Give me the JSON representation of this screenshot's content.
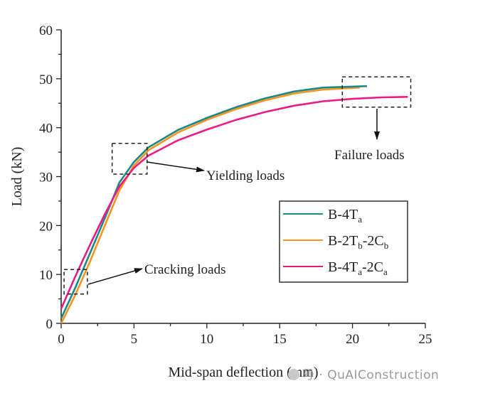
{
  "chart_data": {
    "type": "line",
    "title": "",
    "xlabel": "Mid-span deflection (mm)",
    "ylabel": "Load (kN)",
    "xlim": [
      0,
      25
    ],
    "ylim": [
      0,
      60
    ],
    "xticks": [
      "0",
      "5",
      "10",
      "15",
      "20",
      "25"
    ],
    "yticks": [
      "0",
      "10",
      "20",
      "30",
      "40",
      "50",
      "60"
    ],
    "grid": false,
    "legend_position": "center-right",
    "series": [
      {
        "name": "B-4Ta",
        "label_main": "B-4T",
        "label_sub": "a",
        "label_rest": "",
        "color": "#1a8a87",
        "x": [
          0,
          1,
          2,
          3,
          4,
          5,
          6,
          8,
          10,
          12,
          14,
          16,
          18,
          21
        ],
        "y": [
          1,
          7.5,
          14.5,
          21.5,
          28.8,
          33,
          36,
          39.5,
          42,
          44.2,
          46,
          47.4,
          48.2,
          48.5
        ]
      },
      {
        "name": "B-2Tb-2Cb",
        "label_main": "B-2T",
        "label_sub": "b",
        "label_rest": "-2C",
        "label_sub2": "b",
        "color": "#f7931e",
        "x": [
          0,
          1,
          2,
          3,
          4,
          5,
          6,
          8,
          10,
          12,
          14,
          16,
          18,
          20.5
        ],
        "y": [
          0,
          6,
          12.8,
          20,
          27.2,
          32.3,
          35.4,
          39,
          41.6,
          43.8,
          45.6,
          47,
          47.8,
          48.2
        ]
      },
      {
        "name": "B-4Ta-2Ca",
        "label_main": "B-4T",
        "label_sub": "a",
        "label_rest": "-2C",
        "label_sub2": "a",
        "color": "#ee1a83",
        "x": [
          0,
          1,
          2,
          3,
          4,
          5,
          6,
          8,
          10,
          12,
          14,
          16,
          18,
          20,
          22,
          23.8
        ],
        "y": [
          3,
          9.8,
          16.2,
          22.3,
          28,
          31.8,
          34.3,
          37.4,
          39.6,
          41.6,
          43.2,
          44.5,
          45.4,
          45.9,
          46.2,
          46.3
        ]
      }
    ],
    "annotations": [
      {
        "text": "Cracking loads"
      },
      {
        "text": "Yielding loads"
      },
      {
        "text": "Failure loads"
      }
    ]
  },
  "watermark": {
    "text": "号 · QuAIConstruction"
  }
}
